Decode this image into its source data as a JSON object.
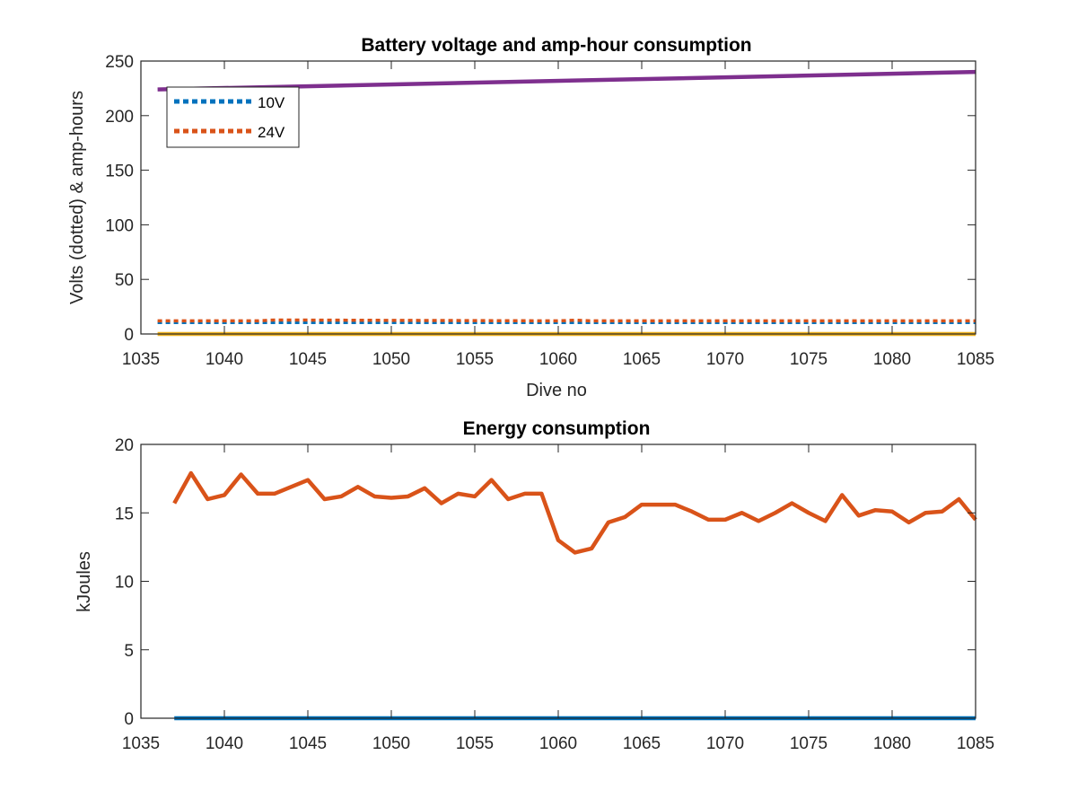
{
  "chart_data": [
    {
      "type": "line",
      "title": "Battery voltage and amp-hour consumption",
      "xlabel": "Dive no",
      "ylabel": "Volts (dotted) & amp-hours",
      "xlim": [
        1035,
        1085
      ],
      "ylim": [
        0,
        250
      ],
      "xticks": [
        1035,
        1040,
        1045,
        1050,
        1055,
        1060,
        1065,
        1070,
        1075,
        1080,
        1085
      ],
      "yticks": [
        0,
        50,
        100,
        150,
        200,
        250
      ],
      "grid": false,
      "legend": {
        "placement": "top-left",
        "entries": [
          "10V",
          "24V"
        ]
      },
      "series": [
        {
          "name": "10V",
          "style": "dotted",
          "color": "#0072BD",
          "x": [
            1036,
            1085
          ],
          "y": [
            10.5,
            10.5
          ]
        },
        {
          "name": "24V",
          "style": "dotted",
          "color": "#D95319",
          "x": [
            1036,
            1042,
            1043,
            1060,
            1061,
            1062,
            1085
          ],
          "y": [
            12,
            12,
            12.8,
            12,
            12.6,
            12,
            12
          ]
        },
        {
          "style": "solid",
          "color": "#EDB120",
          "x": [
            1036,
            1085
          ],
          "y": [
            0,
            0
          ]
        },
        {
          "style": "solid",
          "color": "#7E2F8E",
          "x": [
            1036,
            1085
          ],
          "y": [
            224,
            240
          ]
        }
      ]
    },
    {
      "type": "line",
      "title": "Energy consumption",
      "xlabel": "",
      "ylabel": "kJoules",
      "xlim": [
        1035,
        1085
      ],
      "ylim": [
        0,
        20
      ],
      "xticks": [
        1035,
        1040,
        1045,
        1050,
        1055,
        1060,
        1065,
        1070,
        1075,
        1080,
        1085
      ],
      "yticks": [
        0,
        5,
        10,
        15,
        20
      ],
      "grid": false,
      "series": [
        {
          "style": "solid",
          "color": "#D95319",
          "x": [
            1037,
            1038,
            1039,
            1040,
            1041,
            1042,
            1043,
            1044,
            1045,
            1046,
            1047,
            1048,
            1049,
            1050,
            1051,
            1052,
            1053,
            1054,
            1055,
            1056,
            1057,
            1058,
            1059,
            1060,
            1061,
            1062,
            1063,
            1064,
            1065,
            1066,
            1067,
            1068,
            1069,
            1070,
            1071,
            1072,
            1073,
            1074,
            1075,
            1076,
            1077,
            1078,
            1079,
            1080,
            1081,
            1082,
            1083,
            1084,
            1085
          ],
          "y": [
            15.7,
            17.9,
            16.0,
            16.3,
            17.8,
            16.4,
            16.4,
            16.9,
            17.4,
            16.0,
            16.2,
            16.9,
            16.2,
            16.1,
            16.2,
            16.8,
            15.7,
            16.4,
            16.2,
            17.4,
            16.0,
            16.4,
            16.4,
            13.0,
            12.1,
            12.4,
            14.3,
            14.7,
            15.6,
            15.6,
            15.6,
            15.1,
            14.5,
            14.5,
            15.0,
            14.4,
            15.0,
            15.7,
            15.0,
            14.4,
            16.3,
            14.8,
            15.2,
            15.1,
            14.3,
            15.0,
            15.1,
            16.0,
            14.5
          ]
        },
        {
          "style": "solid",
          "color": "#0072BD",
          "x": [
            1037,
            1085
          ],
          "y": [
            0,
            0
          ]
        }
      ]
    }
  ]
}
